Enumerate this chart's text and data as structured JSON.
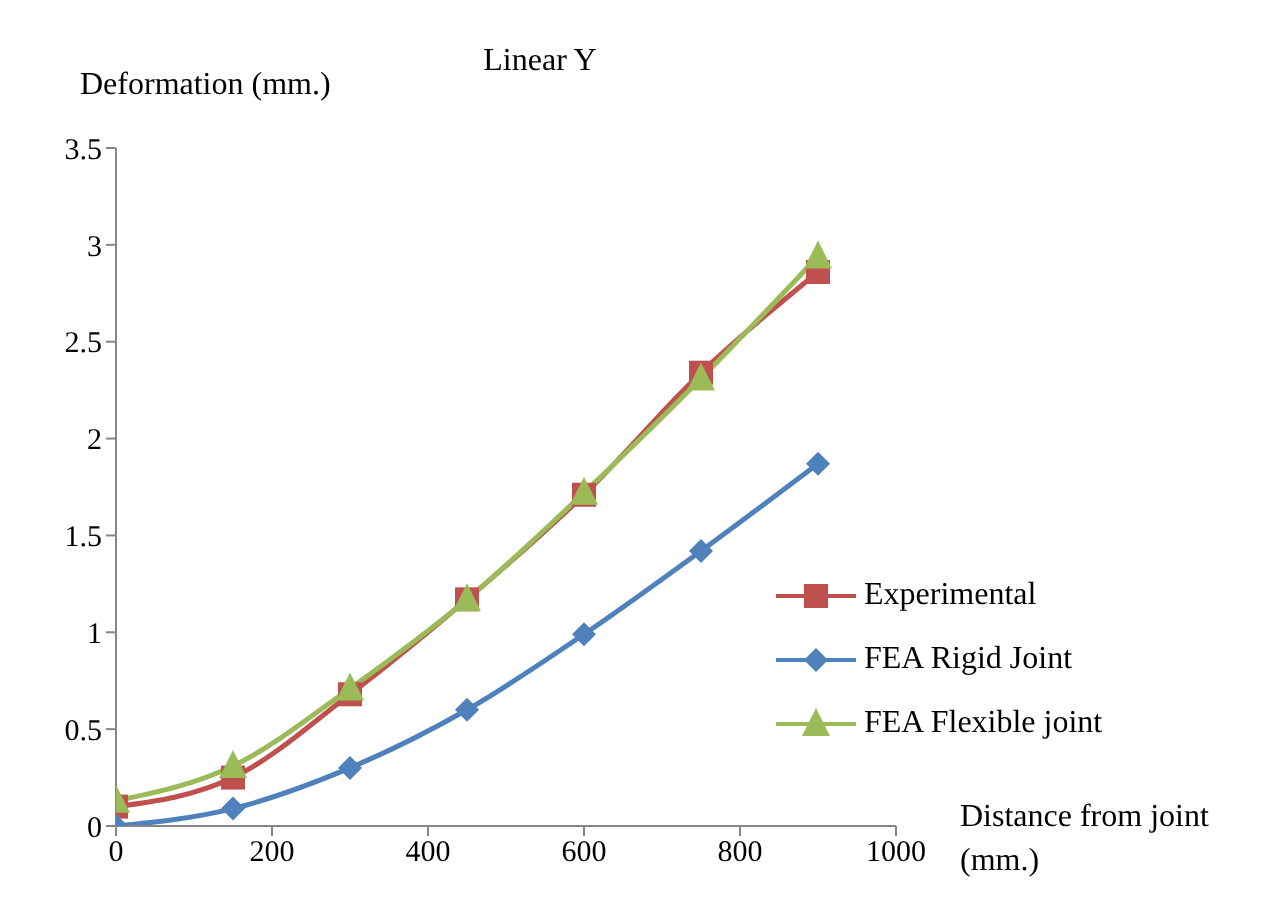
{
  "chart_data": {
    "type": "line",
    "title": "Linear Y",
    "ylabel": "Deformation (mm.)",
    "xlabel": "Distance from joint (mm.)",
    "x": [
      0,
      150,
      300,
      450,
      600,
      750,
      900
    ],
    "series": [
      {
        "name": "Experimental",
        "color": "#c0504d",
        "marker": "square",
        "values": [
          0.1,
          0.25,
          0.68,
          1.17,
          1.71,
          2.34,
          2.86
        ]
      },
      {
        "name": "FEA Rigid Joint",
        "color": "#4f81bd",
        "marker": "diamond",
        "values": [
          0,
          0.09,
          0.3,
          0.6,
          0.99,
          1.42,
          1.87
        ]
      },
      {
        "name": "FEA Flexible joint",
        "color": "#9bbb59",
        "marker": "triangle",
        "values": [
          0.13,
          0.31,
          0.71,
          1.17,
          1.72,
          2.31,
          2.94
        ]
      }
    ],
    "xlim": [
      0,
      1000
    ],
    "xticks": [
      0,
      200,
      400,
      600,
      800,
      1000
    ],
    "ylim": [
      0,
      3.5
    ],
    "yticks": [
      0,
      0.5,
      1,
      1.5,
      2,
      2.5,
      3,
      3.5
    ],
    "grid": false,
    "legend": "right",
    "line_style": "solid"
  }
}
